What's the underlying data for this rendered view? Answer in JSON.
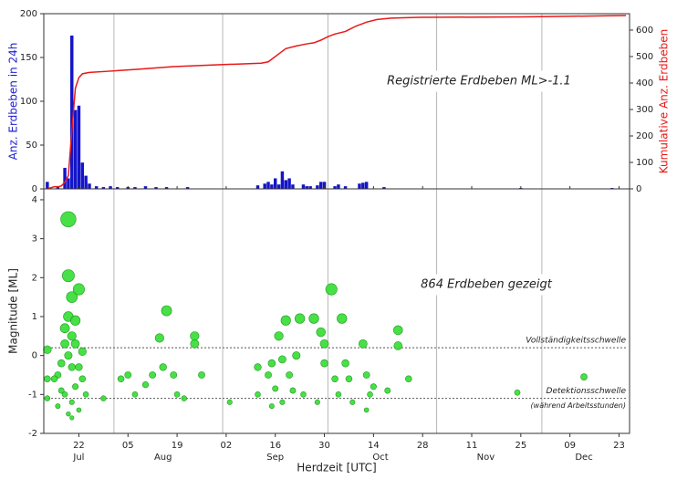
{
  "chart_data": [
    {
      "type": "bar",
      "ylabel": "Anz. Erdbeben in 24h",
      "y2label": "Kumulative Anz. Erdbeben",
      "annotation": "Registrierte Erdbeben ML>-1.1",
      "xlim": [
        193,
        360
      ],
      "ylim": [
        0,
        200
      ],
      "yticks": [
        0,
        50,
        100,
        150,
        200
      ],
      "y2lim": [
        0,
        662
      ],
      "y2ticks": [
        0,
        100,
        200,
        300,
        400,
        500,
        600
      ],
      "series": [
        {
          "type": "bar",
          "color": "#1414c8",
          "x": [
            194,
            197,
            199,
            200,
            201,
            202,
            203,
            204,
            205,
            206,
            208,
            210,
            212,
            214,
            217,
            219,
            222,
            225,
            228,
            234,
            254,
            256,
            257,
            258,
            259,
            260,
            261,
            262,
            263,
            264,
            267,
            268,
            269,
            271,
            272,
            273,
            276,
            277,
            279,
            283,
            284,
            285,
            290,
            329,
            355
          ],
          "values": [
            8,
            3,
            24,
            12,
            175,
            90,
            95,
            30,
            15,
            6,
            3,
            2,
            3,
            2,
            2,
            2,
            3,
            2,
            2,
            2,
            4,
            6,
            8,
            5,
            12,
            5,
            20,
            10,
            12,
            5,
            5,
            3,
            3,
            4,
            8,
            8,
            3,
            5,
            3,
            6,
            7,
            8,
            2,
            1,
            1
          ]
        },
        {
          "type": "line",
          "color": "#e81818",
          "axis": "y2",
          "x": [
            194,
            196,
            197,
            198,
            199,
            200,
            201,
            202,
            203,
            204,
            206,
            212,
            220,
            230,
            245,
            255,
            257,
            258,
            260,
            262,
            265,
            268,
            270,
            272,
            274,
            276,
            279,
            282,
            285,
            288,
            292,
            300,
            330,
            359
          ],
          "values": [
            0,
            8,
            8,
            11,
            25,
            50,
            220,
            380,
            420,
            435,
            440,
            445,
            452,
            462,
            470,
            475,
            480,
            490,
            510,
            530,
            540,
            548,
            552,
            562,
            575,
            585,
            595,
            615,
            630,
            640,
            645,
            648,
            650,
            655
          ]
        }
      ]
    },
    {
      "type": "scatter",
      "ylabel": "Magnitude [ML]",
      "xlabel": "Herdzeit [UTC]",
      "annotation": "864 Erdbeben gezeigt",
      "color": "#33dd33",
      "xlim": [
        193,
        360
      ],
      "ylim": [
        -2,
        4.28
      ],
      "yticks": [
        -2,
        -1,
        0,
        1,
        2,
        3,
        4
      ],
      "xticks": [
        {
          "value": 203,
          "label": "22"
        },
        {
          "value": 217,
          "label": "05"
        },
        {
          "value": 231,
          "label": "19"
        },
        {
          "value": 245,
          "label": "02"
        },
        {
          "value": 259,
          "label": "16"
        },
        {
          "value": 273,
          "label": "30"
        },
        {
          "value": 287,
          "label": "14"
        },
        {
          "value": 301,
          "label": "28"
        },
        {
          "value": 315,
          "label": "11"
        },
        {
          "value": 329,
          "label": "25"
        },
        {
          "value": 343,
          "label": "09"
        },
        {
          "value": 357,
          "label": "23"
        }
      ],
      "month_labels": [
        {
          "value": 203,
          "label": "Jul"
        },
        {
          "value": 227,
          "label": "Aug"
        },
        {
          "value": 259,
          "label": "Sep"
        },
        {
          "value": 289,
          "label": "Oct"
        },
        {
          "value": 319,
          "label": "Nov"
        },
        {
          "value": 347,
          "label": "Dec"
        }
      ],
      "xgrid": [
        213,
        244,
        274,
        305,
        335
      ],
      "reference_lines": [
        {
          "value": 0.2,
          "label": "Vollständigkeitsschwelle"
        },
        {
          "value": -1.1,
          "label": "Detektionsschwelle",
          "note": "(während Arbeitsstunden)"
        }
      ],
      "x": [
        200,
        200,
        201,
        203,
        200,
        202,
        201,
        199,
        198,
        197,
        200,
        201,
        202,
        203,
        204,
        199,
        198,
        196,
        194,
        194,
        194,
        197,
        201,
        204,
        205,
        202,
        200,
        201,
        203,
        199,
        215,
        217,
        219,
        222,
        224,
        226,
        227,
        228,
        230,
        231,
        236,
        236,
        238,
        233,
        210,
        246,
        254,
        254,
        257,
        258,
        259,
        260,
        261,
        262,
        263,
        264,
        265,
        266,
        261,
        258,
        267,
        270,
        272,
        273,
        273,
        275,
        276,
        277,
        278,
        279,
        280,
        281,
        284,
        285,
        286,
        285,
        287,
        271,
        291,
        294,
        294,
        297,
        328,
        347
      ],
      "y": [
        3.5,
        2.05,
        1.5,
        1.7,
        1.0,
        0.9,
        0.5,
        0.3,
        -0.2,
        -0.5,
        -1.5,
        -1.2,
        -0.8,
        -0.3,
        0.1,
        -1.0,
        -0.9,
        -0.6,
        0.15,
        -0.6,
        -1.1,
        -1.3,
        -1.6,
        -0.6,
        -1.0,
        0.3,
        0.0,
        -0.3,
        -1.4,
        0.7,
        -0.6,
        -0.5,
        -1.0,
        -0.75,
        -0.5,
        0.45,
        -0.3,
        1.15,
        -0.5,
        -1.0,
        0.5,
        0.3,
        -0.5,
        -1.1,
        -1.1,
        -1.2,
        -0.3,
        -1.0,
        -0.5,
        -0.2,
        -0.85,
        0.5,
        -1.2,
        0.9,
        -0.5,
        -0.9,
        0.0,
        0.95,
        -0.1,
        -1.3,
        -1.0,
        0.95,
        0.6,
        -0.2,
        0.3,
        1.7,
        -0.6,
        -1.0,
        0.95,
        -0.2,
        -0.6,
        -1.2,
        0.3,
        -0.5,
        -1.0,
        -1.4,
        -0.8,
        -1.2,
        -0.9,
        0.65,
        0.25,
        -0.6,
        -0.95,
        -0.55
      ]
    }
  ]
}
